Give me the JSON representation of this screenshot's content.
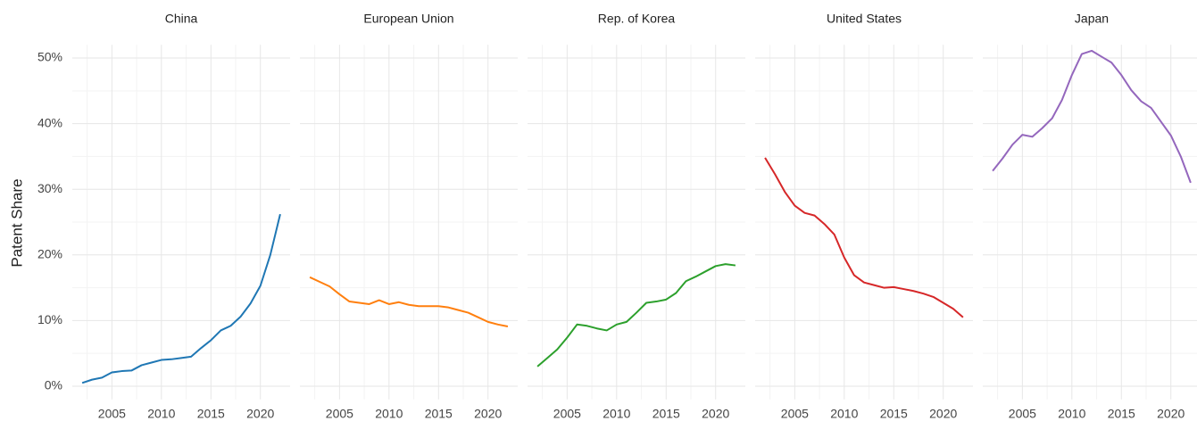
{
  "chart_data": {
    "type": "line",
    "y_label": "Patent Share",
    "x": [
      2002,
      2003,
      2004,
      2005,
      2006,
      2007,
      2008,
      2009,
      2010,
      2011,
      2012,
      2013,
      2014,
      2015,
      2016,
      2017,
      2018,
      2019,
      2020,
      2021,
      2022
    ],
    "xlim": [
      2001,
      2023
    ],
    "xticks": [
      2005,
      2010,
      2015,
      2020
    ],
    "ylim": [
      -2,
      52
    ],
    "yticks": [
      {
        "value": 0,
        "label": "0%"
      },
      {
        "value": 10,
        "label": "10%"
      },
      {
        "value": 20,
        "label": "20%"
      },
      {
        "value": 30,
        "label": "30%"
      },
      {
        "value": 40,
        "label": "40%"
      },
      {
        "value": 50,
        "label": "50%"
      }
    ],
    "grid": true,
    "series": [
      {
        "name": "China",
        "color": "#1f77b4",
        "values": [
          0.5,
          1.0,
          1.3,
          2.1,
          2.3,
          2.4,
          3.2,
          3.6,
          4.0,
          4.1,
          4.3,
          4.5,
          5.8,
          7.0,
          8.5,
          9.2,
          10.6,
          12.6,
          15.3,
          20.0,
          26.2
        ]
      },
      {
        "name": "European Union",
        "color": "#ff7f0e",
        "values": [
          16.6,
          15.9,
          15.2,
          14.0,
          12.9,
          12.7,
          12.5,
          13.1,
          12.5,
          12.8,
          12.4,
          12.2,
          12.2,
          12.2,
          12.0,
          11.6,
          11.2,
          10.5,
          9.8,
          9.4,
          9.1
        ]
      },
      {
        "name": "Rep. of Korea",
        "color": "#2ca02c",
        "values": [
          3.0,
          4.3,
          5.6,
          7.4,
          9.4,
          9.2,
          8.8,
          8.5,
          9.4,
          9.8,
          11.2,
          12.7,
          12.9,
          13.2,
          14.2,
          16.0,
          16.7,
          17.5,
          18.3,
          18.6,
          18.4
        ]
      },
      {
        "name": "United States",
        "color": "#d62728",
        "values": [
          34.8,
          32.3,
          29.6,
          27.5,
          26.4,
          26.0,
          24.7,
          23.1,
          19.6,
          16.9,
          15.8,
          15.4,
          15.0,
          15.1,
          14.8,
          14.5,
          14.1,
          13.6,
          12.7,
          11.8,
          10.5
        ]
      },
      {
        "name": "Japan",
        "color": "#9467bd",
        "values": [
          32.8,
          34.7,
          36.8,
          38.3,
          38.0,
          39.3,
          40.8,
          43.6,
          47.4,
          50.6,
          51.1,
          50.2,
          49.3,
          47.4,
          45.1,
          43.4,
          42.4,
          40.3,
          38.2,
          35.0,
          31.0
        ]
      }
    ]
  }
}
